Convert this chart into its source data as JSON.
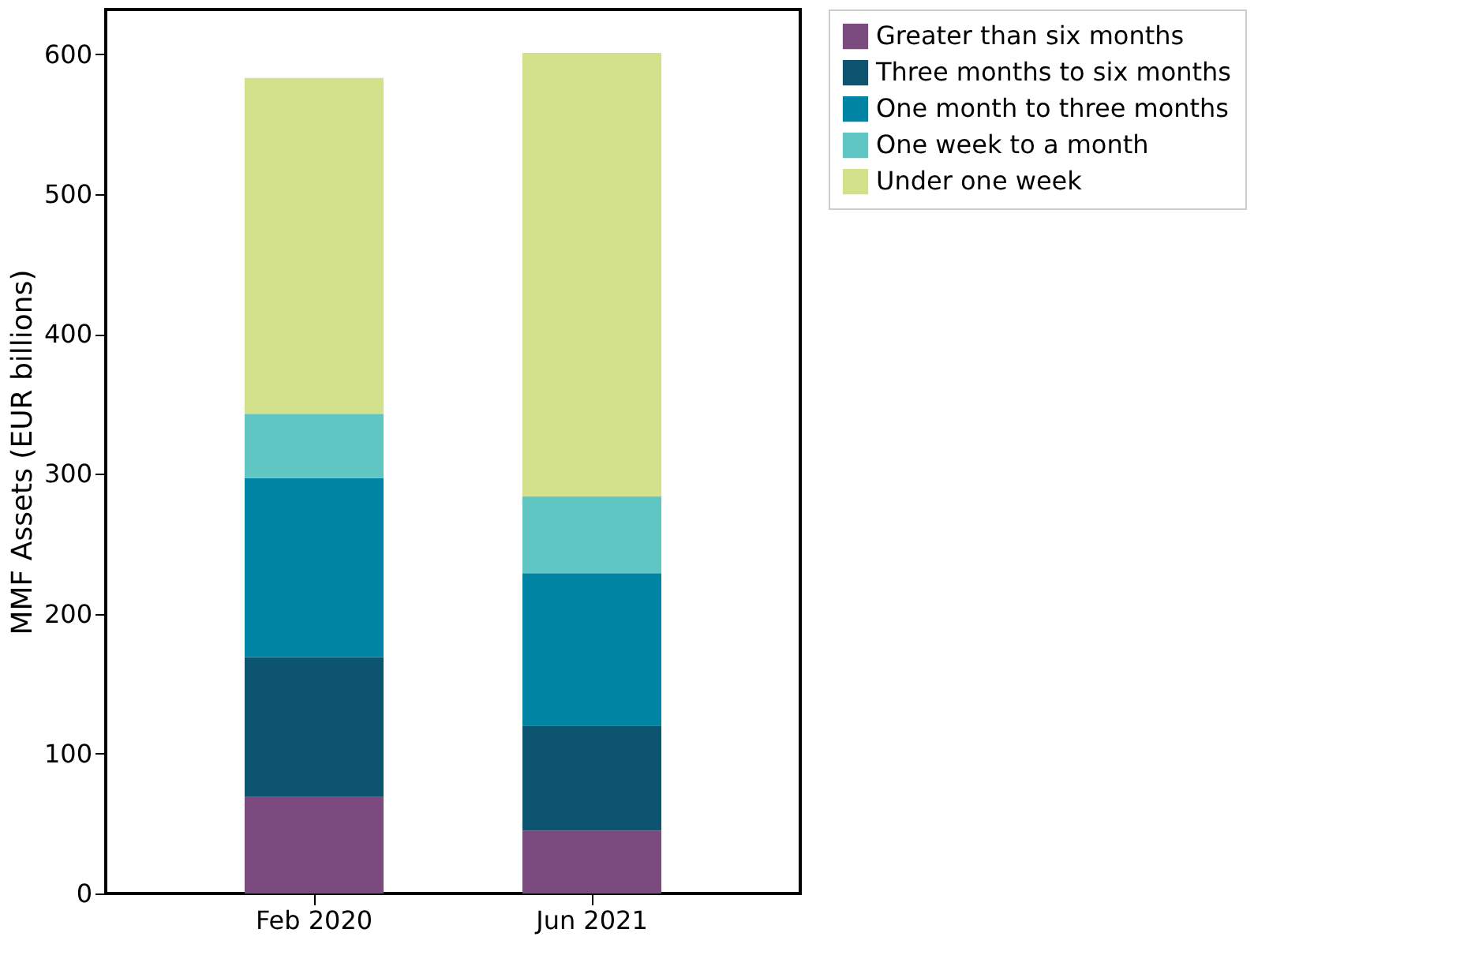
{
  "chart_data": {
    "type": "bar",
    "stacked": true,
    "ylabel": "MMF Assets (EUR billions)",
    "categories": [
      "Feb 2020",
      "Jun 2021"
    ],
    "series": [
      {
        "name": "Greater than six months",
        "color": "#7b4a7e",
        "values": [
          69,
          45
        ]
      },
      {
        "name": "Three months to six months",
        "color": "#0d5470",
        "values": [
          100,
          75
        ]
      },
      {
        "name": "One month to three months",
        "color": "#0084a4",
        "values": [
          128,
          109
        ]
      },
      {
        "name": "One week to a month",
        "color": "#5fc6c3",
        "values": [
          46,
          55
        ]
      },
      {
        "name": "Under one week",
        "color": "#d3e28a",
        "values": [
          240,
          317
        ]
      }
    ],
    "ylim": [
      0,
      632
    ],
    "yticks": [
      0,
      100,
      200,
      300,
      400,
      500,
      600
    ],
    "grid": false,
    "legend": "right"
  }
}
